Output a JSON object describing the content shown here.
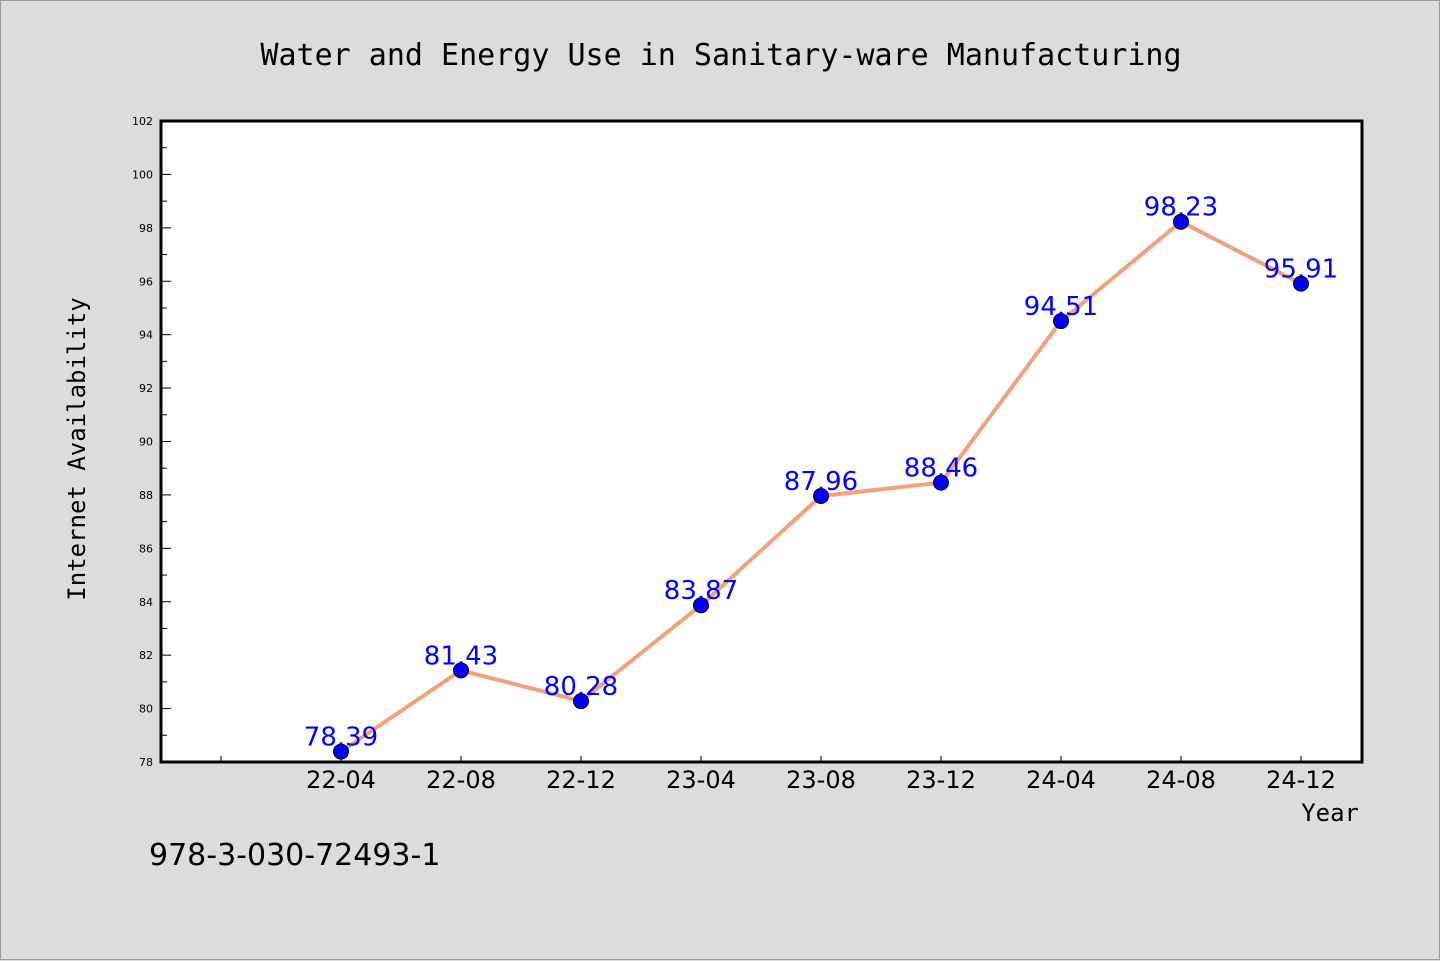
{
  "chart_data": {
    "type": "line",
    "title": "Water and Energy Use in Sanitary-ware Manufacturing",
    "xlabel": "Year",
    "ylabel": "Internet Availability",
    "categories": [
      "22-04",
      "22-08",
      "22-12",
      "23-04",
      "23-08",
      "23-12",
      "24-04",
      "24-08",
      "24-12"
    ],
    "series": [
      {
        "values": [
          78.39,
          81.43,
          80.28,
          83.87,
          87.96,
          88.46,
          94.51,
          98.23,
          95.91
        ],
        "labels": [
          "78.39",
          "81.43",
          "80.28",
          "83.87",
          "87.96",
          "88.46",
          "94.51",
          "98.23",
          "95.91"
        ],
        "line_color": "#f4a07a",
        "marker_color": "#0000ff"
      }
    ],
    "ylim": [
      78,
      102
    ],
    "yticks": [
      "78",
      "80",
      "82",
      "84",
      "86",
      "88",
      "90",
      "92",
      "94",
      "96",
      "98",
      "100",
      "102"
    ],
    "grid": false,
    "data_label_color": "#0000ff"
  },
  "footer": {
    "id_text": "978-3-030-72493-1"
  }
}
